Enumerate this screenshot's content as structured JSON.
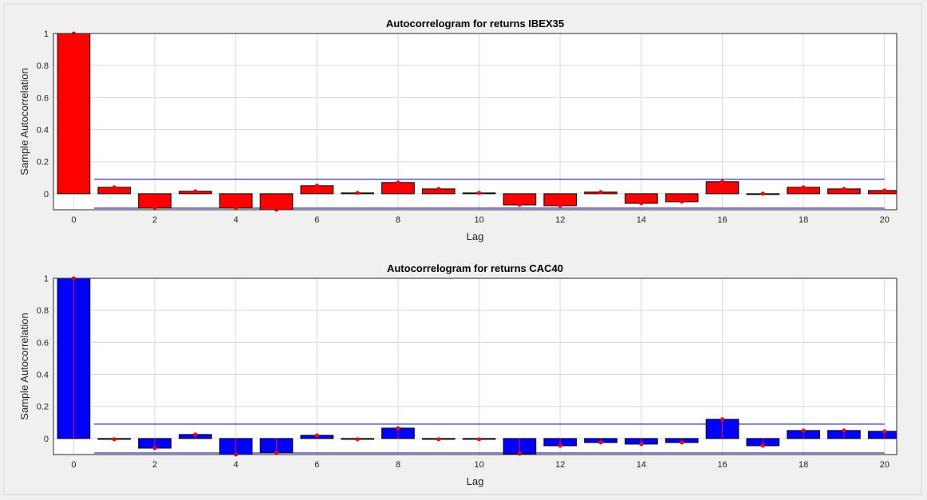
{
  "chart_data": [
    {
      "type": "bar",
      "title": "Autocorrelogram for returns IBEX35",
      "xlabel": "Lag",
      "ylabel": "Sample Autocorrelation",
      "xlim": [
        -0.5,
        20.3
      ],
      "ylim": [
        -0.1,
        1
      ],
      "xticks": [
        0,
        2,
        4,
        6,
        8,
        10,
        12,
        14,
        16,
        18,
        20
      ],
      "yticks": [
        0,
        0.2,
        0.4,
        0.6,
        0.8,
        1
      ],
      "grid": true,
      "bar_color": "#ff0000",
      "marker_color": "#ff0000",
      "stems": false,
      "confidence_bounds": {
        "upper": 0.09,
        "lower": -0.09,
        "from_lag": 0.5,
        "to_lag": 20,
        "color": "#0000aa"
      },
      "lags": [
        0,
        1,
        2,
        3,
        4,
        5,
        6,
        7,
        8,
        9,
        10,
        11,
        12,
        13,
        14,
        15,
        16,
        17,
        18,
        19,
        20
      ],
      "values": [
        1.0,
        0.04,
        -0.09,
        0.015,
        -0.09,
        -0.1,
        0.05,
        0.005,
        0.07,
        0.03,
        0.005,
        -0.07,
        -0.075,
        0.01,
        -0.06,
        -0.05,
        0.075,
        0.0,
        0.04,
        0.03,
        0.02
      ]
    },
    {
      "type": "bar",
      "title": "Autocorrelogram for returns CAC40",
      "xlabel": "Lag",
      "ylabel": "Sample Autocorrelation",
      "xlim": [
        -0.5,
        20.3
      ],
      "ylim": [
        -0.1,
        1
      ],
      "xticks": [
        0,
        2,
        4,
        6,
        8,
        10,
        12,
        14,
        16,
        18,
        20
      ],
      "yticks": [
        0,
        0.2,
        0.4,
        0.6,
        0.8,
        1
      ],
      "grid": true,
      "bar_color": "#0000ff",
      "marker_color": "#ff0000",
      "stems": true,
      "confidence_bounds": {
        "upper": 0.09,
        "lower": -0.09,
        "from_lag": 0.5,
        "to_lag": 20,
        "color": "#0000aa"
      },
      "lags": [
        0,
        1,
        2,
        3,
        4,
        5,
        6,
        7,
        8,
        9,
        10,
        11,
        12,
        13,
        14,
        15,
        16,
        17,
        18,
        19,
        20
      ],
      "values": [
        1.0,
        -0.005,
        -0.06,
        0.025,
        -0.1,
        -0.09,
        0.02,
        -0.005,
        0.065,
        -0.005,
        -0.005,
        -0.095,
        -0.045,
        -0.025,
        -0.035,
        -0.025,
        0.12,
        -0.045,
        0.05,
        0.05,
        0.045
      ]
    }
  ]
}
